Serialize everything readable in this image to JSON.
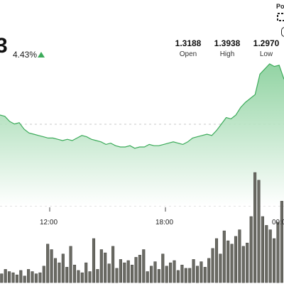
{
  "ticker": {
    "price_fragment": "3",
    "change_pct": "4.43%",
    "direction_icon": "up-triangle-icon",
    "accent_up": "#3cab5a"
  },
  "stats": [
    {
      "value": "1.3188",
      "label": "Open"
    },
    {
      "value": "1.3938",
      "label": "High"
    },
    {
      "value": "1.2970",
      "label": "Low"
    }
  ],
  "branding": {
    "powered_fragment": "Po",
    "logo_icon": "brand-logo-icon"
  },
  "chart_data": {
    "type": "area",
    "x_ticks": [
      "12:00",
      "18:00",
      "00:0"
    ],
    "line_color": "#3cab5a",
    "fill_color": "#cfeed6",
    "price_series": [
      0.6,
      0.59,
      0.55,
      0.53,
      0.54,
      0.49,
      0.46,
      0.45,
      0.44,
      0.43,
      0.42,
      0.42,
      0.41,
      0.4,
      0.41,
      0.4,
      0.42,
      0.44,
      0.43,
      0.41,
      0.4,
      0.39,
      0.37,
      0.38,
      0.36,
      0.35,
      0.35,
      0.36,
      0.34,
      0.35,
      0.35,
      0.37,
      0.36,
      0.36,
      0.37,
      0.38,
      0.39,
      0.38,
      0.37,
      0.39,
      0.42,
      0.43,
      0.44,
      0.45,
      0.44,
      0.48,
      0.53,
      0.58,
      0.57,
      0.6,
      0.66,
      0.7,
      0.73,
      0.76,
      0.92,
      0.96,
      1.0,
      0.98,
      0.99,
      0.88
    ],
    "volume_series": [
      0.08,
      0.12,
      0.1,
      0.09,
      0.07,
      0.11,
      0.06,
      0.12,
      0.1,
      0.08,
      0.09,
      0.15,
      0.35,
      0.3,
      0.22,
      0.18,
      0.26,
      0.14,
      0.33,
      0.16,
      0.11,
      0.09,
      0.18,
      0.1,
      0.4,
      0.12,
      0.3,
      0.27,
      0.17,
      0.33,
      0.13,
      0.21,
      0.18,
      0.2,
      0.16,
      0.23,
      0.25,
      0.3,
      0.1,
      0.15,
      0.19,
      0.12,
      0.26,
      0.15,
      0.18,
      0.2,
      0.11,
      0.16,
      0.13,
      0.13,
      0.21,
      0.15,
      0.19,
      0.14,
      0.22,
      0.31,
      0.4,
      0.26,
      0.47,
      0.38,
      0.35,
      0.42,
      0.48,
      0.33,
      0.36,
      0.6,
      1.0,
      0.93,
      0.6,
      0.52,
      0.48,
      0.4,
      0.55,
      0.74
    ]
  }
}
